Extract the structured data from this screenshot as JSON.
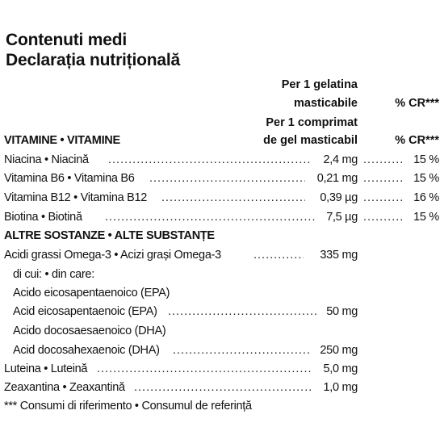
{
  "title": {
    "line1": "Contenuti medi",
    "line2": "Declarația nutrițională"
  },
  "columns": {
    "per_header_1_line1": "Per 1 gelatina",
    "per_header_1_line2": "masticabile",
    "cr_header_1": "% CR***",
    "per_header_2_line1": "Per 1 comprimat",
    "per_header_2_line2": "de gel masticabil",
    "cr_header_2": "% CR***"
  },
  "vitamins": {
    "heading": "VITAMINE • VITAMINE",
    "rows": [
      {
        "name": "Niacina • Niacină",
        "amount": "2,4 mg",
        "cr": "15 %"
      },
      {
        "name": "Vitamina B6 • Vitamina B6",
        "amount": "0,21 mg",
        "cr": "15 %"
      },
      {
        "name": "Vitamina B12 • Vitamina B12",
        "amount": "0,39 µg",
        "cr": "16 %"
      },
      {
        "name": "Biotina • Biotină",
        "amount": "7,5 µg",
        "cr": "15 %"
      }
    ]
  },
  "other": {
    "heading": "ALTRE SOSTANZE • ALTE SUBSTANȚE",
    "omega": {
      "name": "Acidi grassi Omega-3 • Acizi grași Omega-3",
      "amount": "335 mg"
    },
    "of_which": "di cui: • din care:",
    "epa_it": "Acido eicosapentaenoico (EPA)",
    "epa_ro": {
      "name": "Acid eicosapentaenoic (EPA)",
      "amount": "50 mg"
    },
    "dha_it": "Acido docosaesaenoico (DHA)",
    "dha_ro": {
      "name": "Acid docosahexaenoic (DHA)",
      "amount": "250 mg"
    },
    "lutein": {
      "name": "Luteina • Luteină",
      "amount": "5,0 mg"
    },
    "zeaxanthin": {
      "name": "Zeaxantina • Zeaxantină",
      "amount": "1,0 mg"
    }
  },
  "footnote": "*** Consumi di riferimento • Consumul de referință",
  "dot_char": "."
}
